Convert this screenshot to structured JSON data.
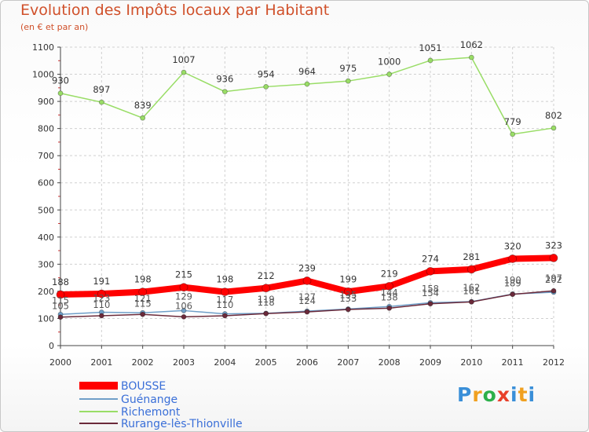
{
  "header": {
    "title": "Evolution des Impôts locaux par Habitant",
    "subtitle": "(en € et par an)"
  },
  "logo": {
    "text": "Proxiti"
  },
  "chart_data": {
    "type": "line",
    "title": "Evolution des Impôts locaux par Habitant",
    "subtitle": "(en € et par an)",
    "xlabel": "",
    "ylabel": "",
    "x": [
      "2000",
      "2001",
      "2002",
      "2003",
      "2004",
      "2005",
      "2006",
      "2007",
      "2008",
      "2009",
      "2010",
      "2011",
      "2012"
    ],
    "ylim": [
      0,
      1100
    ],
    "yticks": [
      0,
      100,
      200,
      300,
      400,
      500,
      600,
      700,
      800,
      900,
      1000,
      1100
    ],
    "grid": true,
    "legend_position": "bottom-left",
    "series": [
      {
        "name": "BOUSSE",
        "color": "#ff0000",
        "values": [
          188,
          191,
          198,
          215,
          198,
          212,
          239,
          199,
          219,
          274,
          281,
          320,
          323
        ]
      },
      {
        "name": "Guénange",
        "color": "#6f9fc8",
        "values": [
          115,
          123,
          121,
          129,
          117,
          119,
          127,
          135,
          144,
          158,
          162,
          190,
          197
        ]
      },
      {
        "name": "Richemont",
        "color": "#99dd66",
        "values": [
          930,
          897,
          839,
          1007,
          936,
          954,
          964,
          975,
          1000,
          1051,
          1062,
          779,
          802
        ]
      },
      {
        "name": "Rurange-lès-Thionville",
        "color": "#6b2a3a",
        "values": [
          105,
          110,
          115,
          106,
          110,
          118,
          124,
          133,
          138,
          154,
          161,
          189,
          202
        ]
      }
    ]
  }
}
